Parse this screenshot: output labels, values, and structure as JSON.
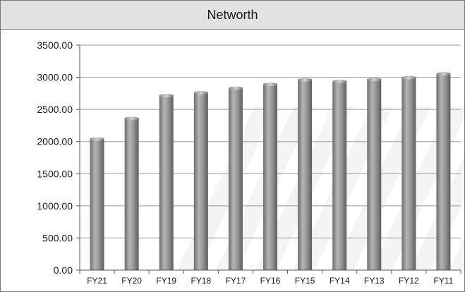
{
  "chart_data": {
    "type": "bar",
    "title": "Networth",
    "xlabel": "",
    "ylabel": "",
    "categories": [
      "FY21",
      "FY20",
      "FY19",
      "FY18",
      "FY17",
      "FY16",
      "FY15",
      "FY14",
      "FY13",
      "FY12",
      "FY11"
    ],
    "values": [
      2050,
      2370,
      2725,
      2770,
      2840,
      2900,
      2970,
      2945,
      2975,
      3005,
      3065
    ],
    "ylim": [
      0,
      3500
    ],
    "yticks": [
      "0.00",
      "500.00",
      "1000.00",
      "1500.00",
      "2000.00",
      "2500.00",
      "3000.00",
      "3500.00"
    ],
    "grid": true,
    "legend": "none",
    "bar_color": "#8c8c8c",
    "grid_color": "#9a9a9a"
  }
}
